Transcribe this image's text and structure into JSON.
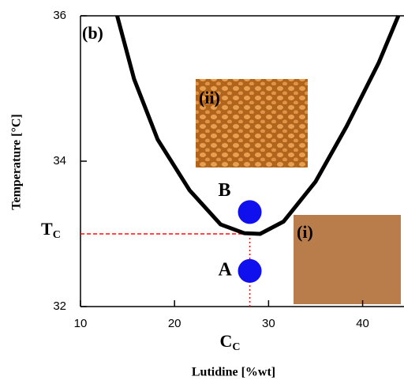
{
  "chart_data": {
    "type": "line",
    "x_label": "Lutidine [%wt]",
    "y_label": "Temperature [°C]",
    "panel_label": "(b)",
    "xlim": [
      10,
      44.4
    ],
    "ylim": [
      32,
      36
    ],
    "xticks": [
      10,
      20,
      30,
      40
    ],
    "yticks": [
      32,
      34,
      36
    ],
    "series": [
      {
        "color": "#000000",
        "x": [
          13.9,
          15.7,
          18.2,
          21.6,
          24.9,
          27.4,
          29.1,
          31.6,
          35.0,
          38.3,
          41.7,
          43.8
        ],
        "y": [
          36.0,
          35.13,
          34.3,
          33.6,
          33.13,
          33.01,
          33.0,
          33.17,
          33.72,
          34.48,
          35.35,
          36.0
        ]
      }
    ],
    "points": [
      {
        "label": "A",
        "x": 28,
        "y": 32.49,
        "color": "#1010ee"
      },
      {
        "label": "B",
        "x": 28,
        "y": 33.3,
        "color": "#1010ee"
      }
    ],
    "critical": {
      "x": 28,
      "y": 33,
      "color": "#ee1111",
      "x_label": "C",
      "x_label_sub": "C",
      "y_label": "T",
      "y_label_sub": "C"
    },
    "insets": [
      {
        "label": "(ii)"
      },
      {
        "label": "(i)"
      }
    ]
  }
}
